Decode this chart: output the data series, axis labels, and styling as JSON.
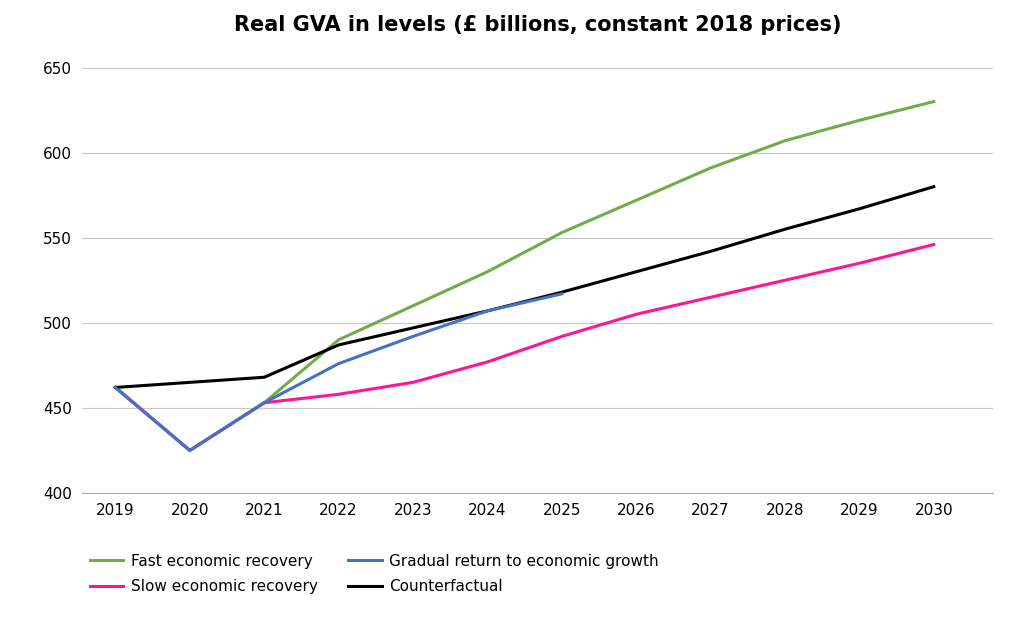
{
  "title": "Real GVA in levels (£ billions, constant 2018 prices)",
  "years": [
    2019,
    2020,
    2021,
    2022,
    2023,
    2024,
    2025,
    2026,
    2027,
    2028,
    2029,
    2030
  ],
  "fast_recovery": [
    462,
    425,
    453,
    490,
    510,
    530,
    553,
    572,
    591,
    607,
    619,
    630
  ],
  "slow_recovery": [
    462,
    425,
    453,
    458,
    465,
    477,
    492,
    505,
    515,
    525,
    535,
    546
  ],
  "gradual_return": [
    462,
    425,
    453,
    476,
    492,
    507,
    517,
    null,
    null,
    null,
    null,
    null
  ],
  "counterfactual": [
    462,
    465,
    468,
    487,
    497,
    507,
    518,
    530,
    542,
    555,
    567,
    580
  ],
  "fast_color": "#70ad47",
  "slow_color": "#ff1493",
  "gradual_color": "#4472c4",
  "cf_color": "#000000",
  "ylim": [
    400,
    660
  ],
  "yticks": [
    400,
    450,
    500,
    550,
    600,
    650
  ],
  "xlim_left": 2018.55,
  "xlim_right": 2030.8,
  "bg_color": "#ffffff",
  "grid_color": "#c8c8c8",
  "spine_color": "#aaaaaa",
  "line_width": 2.2,
  "tick_fontsize": 11,
  "title_fontsize": 15,
  "legend_fontsize": 11
}
